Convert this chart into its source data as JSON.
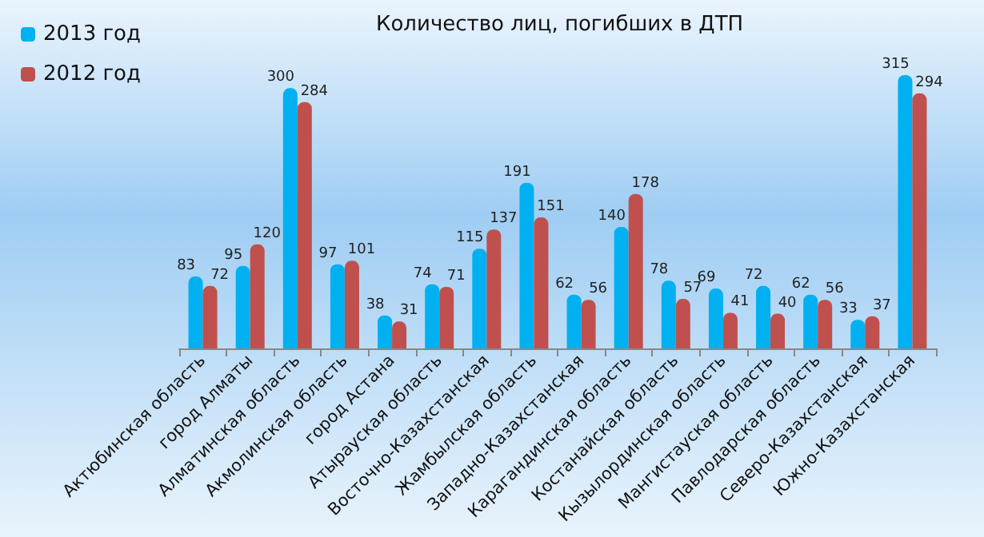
{
  "chart_data": {
    "type": "bar",
    "title": "Количество лиц, погибших в ДТП",
    "categories": [
      "Актюбинская область",
      "город Алматы",
      "Алматинская область",
      "Акмолинская область",
      "город Астана",
      "Атырауская область",
      "Восточно-Казахстанская",
      "Жамбылская область",
      "Западно-Казахстанская",
      "Карагандинская область",
      "Костанайская область",
      "Кызылординская область",
      "Мангистауская область",
      "Павлодарская область",
      "Северо-Казахстанская",
      "Южно-Казахстанская"
    ],
    "series": [
      {
        "name": "2013 год",
        "color": "#00b0f0",
        "values": [
          83,
          95,
          300,
          97,
          38,
          74,
          115,
          191,
          62,
          140,
          78,
          69,
          72,
          62,
          33,
          315
        ]
      },
      {
        "name": "2012 год",
        "color": "#c0504d",
        "values": [
          72,
          120,
          284,
          101,
          31,
          71,
          137,
          151,
          56,
          178,
          57,
          41,
          40,
          56,
          37,
          294
        ]
      }
    ],
    "data_labels": true,
    "legend": "top left",
    "tick_labels": "x"
  }
}
